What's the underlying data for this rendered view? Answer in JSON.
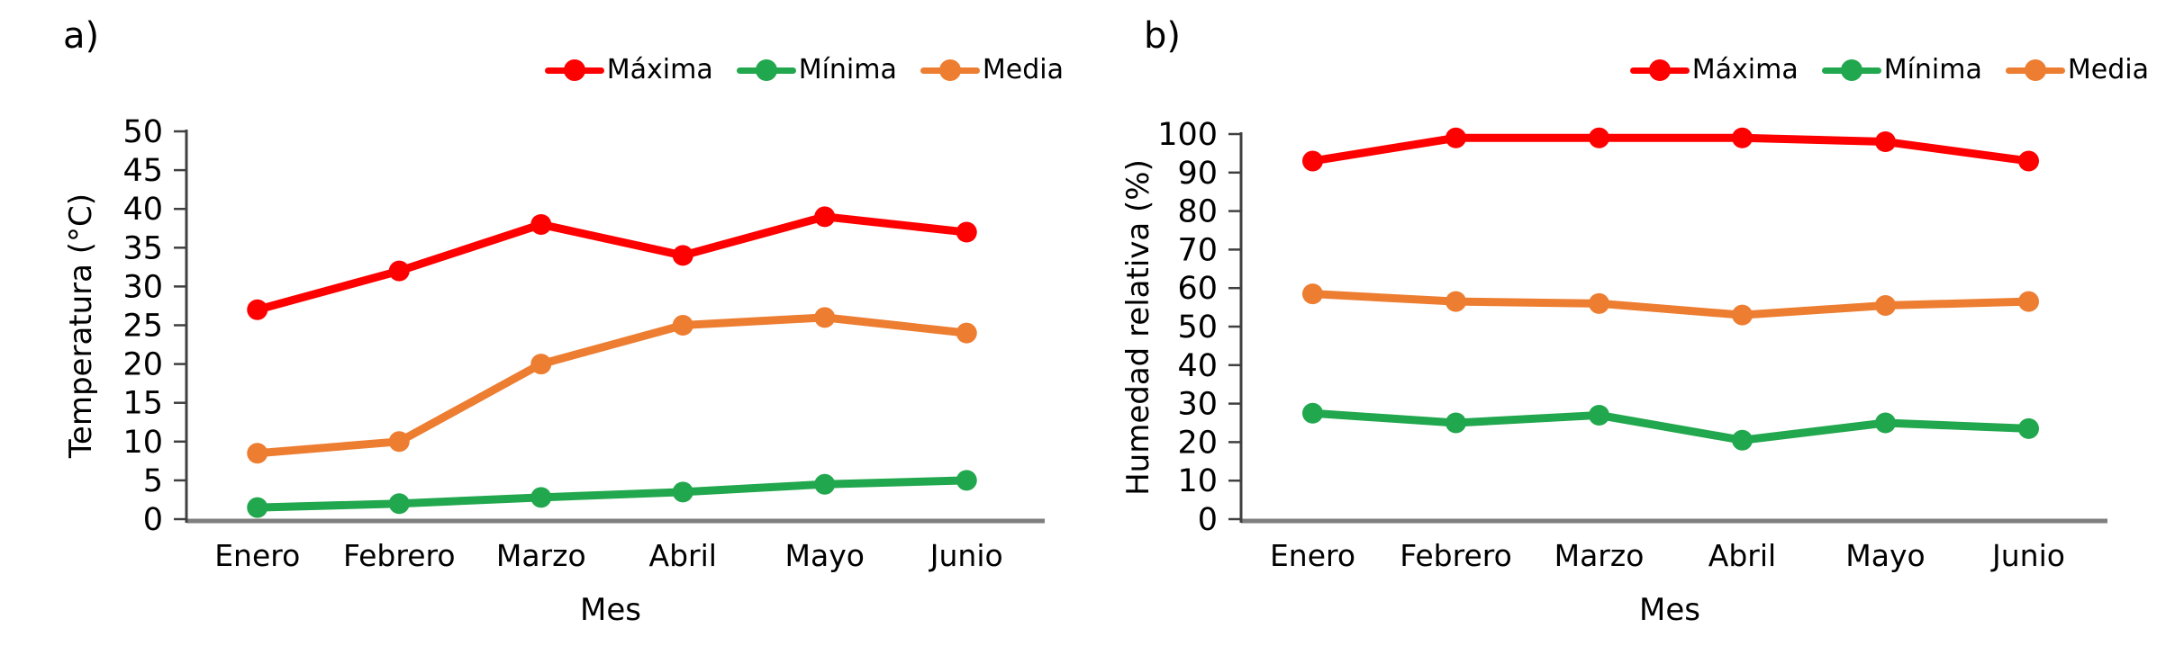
{
  "figure_title": "",
  "colors": {
    "maxima": "#FF0000",
    "minima": "#21A74D",
    "media": "#ED7D31",
    "y_axis": "#404040",
    "x_axis": "#7F7F7F",
    "text": "#000000"
  },
  "chart_data": [
    {
      "type": "line",
      "panel_label": "a)",
      "title": "",
      "xlabel": "Mes",
      "ylabel": "Temperatura (°C)",
      "categories": [
        "Enero",
        "Febrero",
        "Marzo",
        "Abril",
        "Mayo",
        "Junio"
      ],
      "ylim": [
        0,
        50
      ],
      "ytick_step": 5,
      "grid": false,
      "legend_position": "top-right",
      "series": [
        {
          "name": "Máxima",
          "color": "#FF0000",
          "values": [
            27,
            32,
            38,
            34,
            39,
            37
          ]
        },
        {
          "name": "Mínima",
          "color": "#21A74D",
          "values": [
            1.5,
            2,
            2.8,
            3.5,
            4.5,
            5
          ]
        },
        {
          "name": "Media",
          "color": "#ED7D31",
          "values": [
            8.5,
            10,
            20,
            25,
            26,
            24
          ]
        }
      ]
    },
    {
      "type": "line",
      "panel_label": "b)",
      "title": "",
      "xlabel": "Mes",
      "ylabel": "Humedad relativa (%)",
      "categories": [
        "Enero",
        "Febrero",
        "Marzo",
        "Abril",
        "Mayo",
        "Junio"
      ],
      "ylim": [
        0,
        100
      ],
      "ytick_step": 10,
      "grid": false,
      "legend_position": "top-right",
      "series": [
        {
          "name": "Máxima",
          "color": "#FF0000",
          "values": [
            93,
            99,
            99,
            99,
            98,
            93
          ]
        },
        {
          "name": "Mínima",
          "color": "#21A74D",
          "values": [
            27.5,
            25,
            27,
            20.5,
            25,
            23.5
          ]
        },
        {
          "name": "Media",
          "color": "#ED7D31",
          "values": [
            58.5,
            56.5,
            56,
            53,
            55.5,
            56.5
          ]
        }
      ]
    }
  ]
}
